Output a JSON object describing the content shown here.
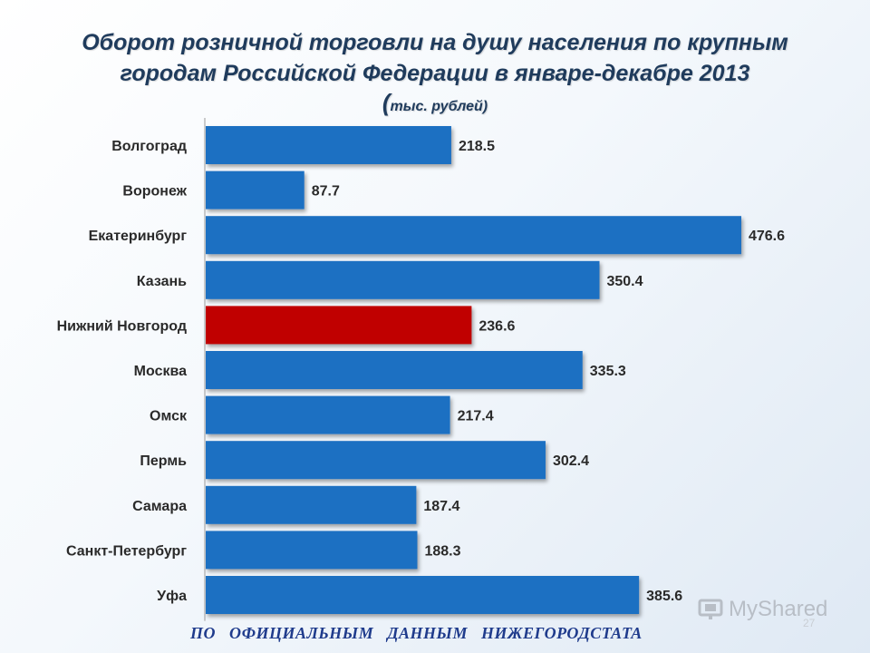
{
  "slide": {
    "title_line1": "Оборот розничной торговли на душу населения по крупным",
    "title_line2": "городам Российской Федерации в январе-декабре 2013",
    "units_open": "(",
    "units": "тыс. рублей)",
    "footer": "ПО ОФИЦИАЛЬНЫМ ДАННЫМ НИЖЕГОРОДСТАТА",
    "slide_number": "27",
    "watermark": "MyShared"
  },
  "colors": {
    "bar": "#1f6fc2",
    "highlight": "#c00000",
    "label": "#2a2a2a"
  },
  "chart_data": {
    "type": "bar",
    "orientation": "horizontal",
    "title": "Оборот розничной торговли на душу населения по крупным городам Российской Федерации в январе-декабре 2013",
    "units": "тыс. рублей",
    "categories": [
      "Волгоград",
      "Воронеж",
      "Екатеринбург",
      "Казань",
      "Нижний Новгород",
      "Москва",
      "Омск",
      "Пермь",
      "Самара",
      "Санкт-Петербург",
      "Уфа"
    ],
    "values": [
      218.5,
      87.7,
      476.6,
      350.4,
      236.6,
      335.3,
      217.4,
      302.4,
      187.4,
      188.3,
      385.6
    ],
    "value_labels": [
      "218.5",
      "87.7",
      "476.6",
      "350.4",
      "236.6",
      "335.3",
      "217.4",
      "302.4",
      "187.4",
      "188.3",
      "385.6"
    ],
    "highlight_category": "Нижний Новгород",
    "xlim": [
      0,
      500
    ],
    "grid": false,
    "legend": "none"
  }
}
